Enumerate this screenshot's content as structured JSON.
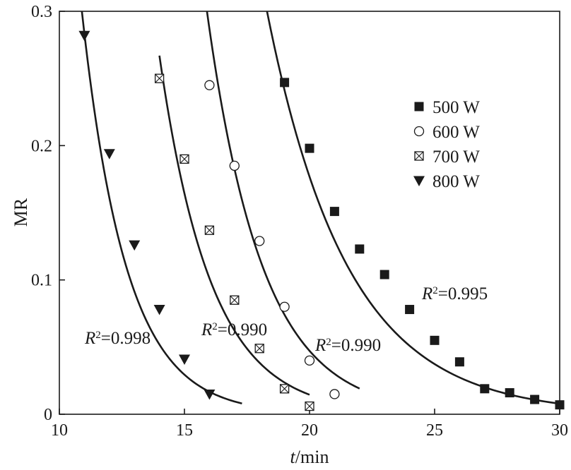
{
  "chart_data": {
    "type": "scatter",
    "xlabel_italic": "t",
    "xlabel_rest": "/min",
    "ylabel": "MR",
    "xlim": [
      10,
      30
    ],
    "ylim": [
      0,
      0.3
    ],
    "xticks": [
      10,
      15,
      20,
      25,
      30
    ],
    "xtick_labels": [
      "10",
      "15",
      "20",
      "25",
      "30"
    ],
    "yticks": [
      0,
      0.1,
      0.2,
      0.3
    ],
    "ytick_labels": [
      "0",
      "0.1",
      "0.2",
      "0.3"
    ],
    "grid": false,
    "legend_position": "top-right",
    "series": [
      {
        "name": "500 W",
        "marker": "filled-square",
        "points": [
          [
            19,
            0.247
          ],
          [
            20,
            0.198
          ],
          [
            21,
            0.151
          ],
          [
            22,
            0.123
          ],
          [
            23,
            0.104
          ],
          [
            24,
            0.078
          ],
          [
            25,
            0.055
          ],
          [
            26,
            0.039
          ],
          [
            27,
            0.019
          ],
          [
            28,
            0.016
          ],
          [
            29,
            0.011
          ],
          [
            30,
            0.007
          ]
        ],
        "fit": {
          "x0": 18.3,
          "x1": 30.0,
          "a": 0.3,
          "k": 0.311,
          "c": 18.3
        },
        "r2_prefix": "R",
        "r2_text": "=0.995"
      },
      {
        "name": "600 W",
        "marker": "open-circle",
        "points": [
          [
            16,
            0.245
          ],
          [
            17,
            0.185
          ],
          [
            18,
            0.129
          ],
          [
            19,
            0.08
          ],
          [
            20,
            0.04
          ],
          [
            21,
            0.015
          ]
        ],
        "fit": {
          "x0": 15.9,
          "x1": 22.0,
          "a": 0.3,
          "k": 0.451,
          "c": 15.9
        },
        "r2_prefix": "R",
        "r2_text": "=0.990"
      },
      {
        "name": "700 W",
        "marker": "crossed-square",
        "points": [
          [
            14,
            0.25
          ],
          [
            15,
            0.19
          ],
          [
            16,
            0.137
          ],
          [
            17,
            0.085
          ],
          [
            18,
            0.049
          ],
          [
            19,
            0.019
          ],
          [
            20,
            0.006
          ]
        ],
        "fit": {
          "x0": 14.0,
          "x1": 20.0,
          "a": 0.267,
          "k": 0.485,
          "c": 14.0
        },
        "r2_prefix": "R",
        "r2_text": "=0.990"
      },
      {
        "name": "800 W",
        "marker": "filled-triangle-down",
        "points": [
          [
            11,
            0.282
          ],
          [
            12,
            0.194
          ],
          [
            13,
            0.126
          ],
          [
            14,
            0.078
          ],
          [
            15,
            0.041
          ],
          [
            16,
            0.015
          ]
        ],
        "fit": {
          "x0": 10.9,
          "x1": 17.3,
          "a": 0.3,
          "k": 0.566,
          "c": 10.9
        },
        "r2_prefix": "R",
        "r2_text": "=0.998"
      }
    ]
  }
}
